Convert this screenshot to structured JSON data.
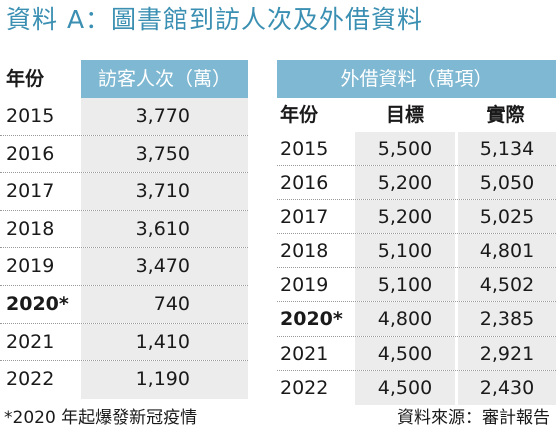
{
  "title": "資料 A：圖書館到訪人次及外借資料",
  "visits_table": {
    "header_year": "年份",
    "header_value": "訪客人次（萬）",
    "rows": [
      {
        "year": "2015",
        "value": "3,770"
      },
      {
        "year": "2016",
        "value": "3,750"
      },
      {
        "year": "2017",
        "value": "3,710"
      },
      {
        "year": "2018",
        "value": "3,610"
      },
      {
        "year": "2019",
        "value": "3,470"
      },
      {
        "year": "2020*",
        "value": "740"
      },
      {
        "year": "2021",
        "value": "1,410"
      },
      {
        "year": "2022",
        "value": "1,190"
      }
    ]
  },
  "loans_table": {
    "header_group": "外借資料（萬項）",
    "header_year": "年份",
    "header_target": "目標",
    "header_actual": "實際",
    "rows": [
      {
        "year": "2015",
        "target": "5,500",
        "actual": "5,134"
      },
      {
        "year": "2016",
        "target": "5,200",
        "actual": "5,050"
      },
      {
        "year": "2017",
        "target": "5,200",
        "actual": "5,025"
      },
      {
        "year": "2018",
        "target": "5,100",
        "actual": "4,801"
      },
      {
        "year": "2019",
        "target": "5,100",
        "actual": "4,502"
      },
      {
        "year": "2020*",
        "target": "4,800",
        "actual": "2,385"
      },
      {
        "year": "2021",
        "target": "4,500",
        "actual": "2,921"
      },
      {
        "year": "2022",
        "target": "4,500",
        "actual": "2,430"
      }
    ]
  },
  "footnote": "*2020 年起爆發新冠疫情",
  "source": "資料來源：審計報告",
  "colors": {
    "title": "#3a8fb2",
    "header_bg": "#7fb8d2",
    "cell_bg": "#ececec"
  }
}
